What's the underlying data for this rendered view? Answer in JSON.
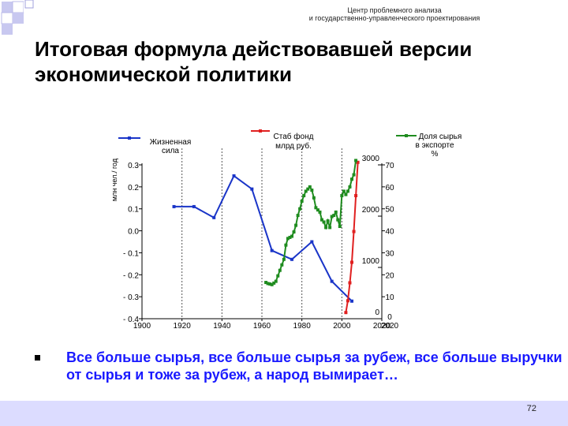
{
  "header": {
    "org_line1": "Центр проблемного анализа",
    "org_line2": "и государственно-управленческого проектирования"
  },
  "title": "Итоговая формула действовавшей версии экономической политики",
  "bullet": "Все больше сырья, все больше сырья за рубеж, все больше выручки от сырья и тоже за рубеж, а народ вымирает…",
  "page_number": "72",
  "colors": {
    "labor": "#1a35c8",
    "stab_fund": "#e02020",
    "raw_share": "#1f8c1f",
    "bullet_text": "#1a1aff",
    "footer": "#dcdcff"
  },
  "chart_data": {
    "type": "line",
    "y_left_label": "млн чел./ год",
    "x_ticks": [
      "1900",
      "1920",
      "1940",
      "1960",
      "1980",
      "2000",
      "2020"
    ],
    "xlim": [
      1900,
      2020
    ],
    "y_left_ticks": [
      "0.3",
      "0.2",
      "0.1",
      "0.0",
      "- 0.1",
      "- 0.2",
      "- 0.3",
      "- 0.4"
    ],
    "y_left_lim": [
      -0.4,
      0.3
    ],
    "y_mid_ticks": [
      "3000",
      "2000",
      "1000",
      "0"
    ],
    "y_mid_lim": [
      0,
      3000
    ],
    "y_right_ticks": [
      "70",
      "60",
      "50",
      "40",
      "30",
      "20",
      "10",
      "2020"
    ],
    "y_right_lim": [
      0,
      70
    ],
    "series": [
      {
        "name": "Жизненная сила",
        "axis": "left",
        "color": "#1a35c8",
        "x": [
          1916,
          1926,
          1936,
          1946,
          1955,
          1965,
          1975,
          1985,
          1995,
          2005
        ],
        "y": [
          0.11,
          0.11,
          0.06,
          0.25,
          0.19,
          -0.09,
          -0.13,
          -0.05,
          -0.23,
          -0.32
        ]
      },
      {
        "name": "Стаб фонд млрд руб.",
        "axis": "mid",
        "color": "#e02020",
        "x": [
          2002,
          2003,
          2004,
          2005,
          2006,
          2007,
          2008
        ],
        "y": [
          120,
          350,
          700,
          1100,
          1700,
          2400,
          3050
        ]
      },
      {
        "name": "Доля сырья в экспорте %",
        "axis": "right",
        "color": "#1f8c1f",
        "x": [
          1962,
          1963,
          1964,
          1965,
          1966,
          1967,
          1968,
          1969,
          1970,
          1971,
          1972,
          1973,
          1974,
          1975,
          1976,
          1977,
          1978,
          1979,
          1980,
          1981,
          1982,
          1983,
          1984,
          1985,
          1986,
          1987,
          1988,
          1989,
          1990,
          1991,
          1992,
          1993,
          1994,
          1995,
          1996,
          1997,
          1998,
          1999,
          2000,
          2001,
          2002,
          2003,
          2004,
          2005,
          2006,
          2007
        ],
        "y": [
          16.5,
          16.0,
          15.8,
          15.5,
          16.2,
          17.0,
          19.5,
          22.0,
          24.5,
          27.0,
          33.5,
          36.5,
          37.0,
          37.5,
          39.5,
          42.5,
          47.0,
          50.0,
          53.5,
          56.0,
          58.0,
          59.0,
          60.0,
          58.5,
          55.0,
          50.5,
          49.5,
          48.5,
          45.0,
          44.0,
          41.5,
          44.5,
          41.5,
          46.5,
          47.0,
          48.5,
          45.0,
          42.0,
          56.0,
          58.0,
          56.5,
          58.0,
          60.0,
          63.5,
          65.5,
          72.0
        ]
      }
    ]
  }
}
